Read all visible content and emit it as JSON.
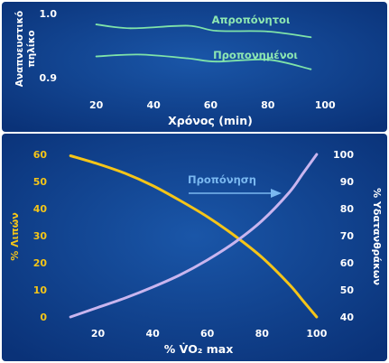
{
  "colors": {
    "background": "#0d3f8c",
    "text": "#ffffff",
    "green_line": "#7fe3a9",
    "green_text": "#8de7b2",
    "yellow": "#f5c518",
    "purple": "#c9b5ef",
    "arrow_label_blue": "#7ab8f0",
    "bottom_left_axis_text": "#f5c518",
    "bottom_right_axis_text": "#ffffff"
  },
  "chart_data": [
    {
      "type": "line",
      "xlabel": "Χρόνος (min)",
      "ylabel": "Αναπνευστικό πηλίκο",
      "xlim": [
        10,
        105
      ],
      "ylim": [
        0.89,
        1.0
      ],
      "xticks": [
        "20",
        "40",
        "60",
        "80",
        "100"
      ],
      "yticks": [
        "0.9",
        "1.0"
      ],
      "grid": false,
      "series": [
        {
          "name": "Απροπόνητοι",
          "x": [
            20,
            32,
            52,
            62,
            80,
            95
          ],
          "values": [
            0.983,
            0.977,
            0.981,
            0.973,
            0.972,
            0.963
          ]
        },
        {
          "name": "Προπονημένοι",
          "x": [
            20,
            35,
            52,
            62,
            80,
            95
          ],
          "values": [
            0.933,
            0.936,
            0.93,
            0.925,
            0.928,
            0.913
          ]
        }
      ]
    },
    {
      "type": "line",
      "xlabel": "% V̇O₂ max",
      "ylabel_left": "% Λιπών",
      "ylabel_right": "% Υδατανθράκων",
      "xlim": [
        5,
        105
      ],
      "ylim_left": [
        0,
        60
      ],
      "ylim_right": [
        40,
        100
      ],
      "xticks": [
        "20",
        "40",
        "60",
        "80",
        "100"
      ],
      "yticks_left": [
        "0",
        "10",
        "20",
        "30",
        "40",
        "50",
        "60"
      ],
      "yticks_right": [
        "40",
        "50",
        "60",
        "70",
        "80",
        "90",
        "100"
      ],
      "grid": false,
      "annotation": "Προπόνηση",
      "series": [
        {
          "name": "% Λιπών",
          "axis": "left",
          "x": [
            10,
            20,
            30,
            40,
            50,
            60,
            70,
            80,
            90,
            95,
            100
          ],
          "values": [
            59.5,
            56.5,
            53,
            48.5,
            43,
            37,
            30,
            22,
            12,
            6,
            0
          ]
        },
        {
          "name": "% Υδατανθράκων",
          "axis": "right",
          "x": [
            10,
            20,
            30,
            40,
            50,
            60,
            70,
            80,
            90,
            95,
            100
          ],
          "values": [
            40,
            43.5,
            47,
            51,
            55.5,
            61,
            67.5,
            75.5,
            86,
            93,
            100
          ]
        }
      ]
    }
  ]
}
